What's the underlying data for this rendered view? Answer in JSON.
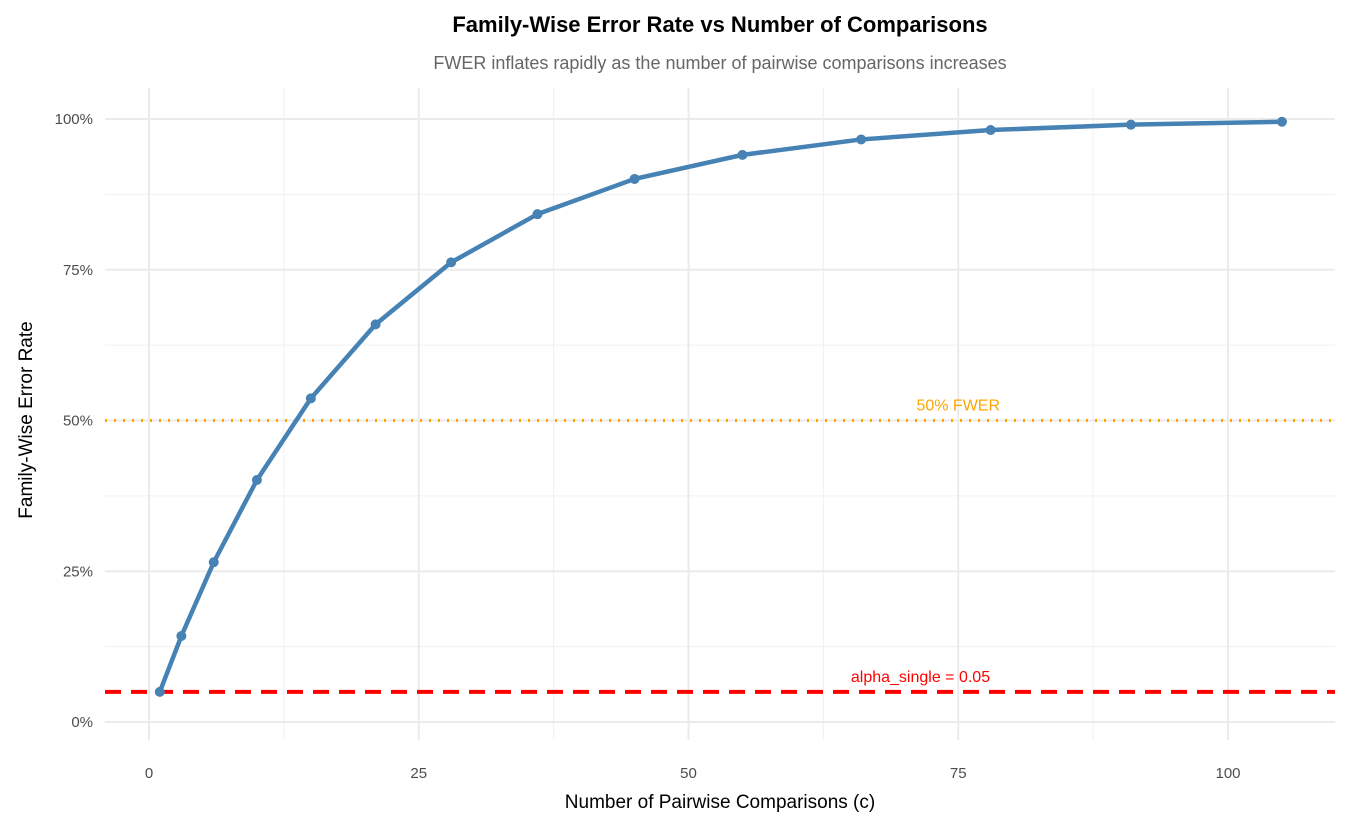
{
  "chart_data": {
    "type": "line",
    "title": "Family-Wise Error Rate vs Number of Comparisons",
    "subtitle": "FWER inflates rapidly as the number of pairwise comparisons increases",
    "xlabel": "Number of Pairwise Comparisons (c)",
    "ylabel": "Family-Wise Error Rate",
    "xlim": [
      -4,
      110
    ],
    "ylim": [
      -0.03,
      1.05
    ],
    "x_ticks": [
      0,
      25,
      50,
      75,
      100
    ],
    "x_tick_labels": [
      "0",
      "25",
      "50",
      "75",
      "100"
    ],
    "y_ticks": [
      0,
      0.25,
      0.5,
      0.75,
      1
    ],
    "y_tick_labels": [
      "0%",
      "25%",
      "50%",
      "75%",
      "100%"
    ],
    "grid": true,
    "series": [
      {
        "name": "FWER",
        "color": "#4682B4",
        "x": [
          1,
          3,
          6,
          10,
          15,
          21,
          28,
          36,
          45,
          55,
          66,
          78,
          91,
          105
        ],
        "y": [
          0.05,
          0.1426,
          0.2649,
          0.4013,
          0.5367,
          0.6594,
          0.7622,
          0.8422,
          0.9006,
          0.9405,
          0.9661,
          0.9817,
          0.9906,
          0.9954
        ]
      }
    ],
    "reference_lines": [
      {
        "y": 0.5,
        "style": "dotted",
        "color": "#FFA500",
        "label": "50% FWER",
        "label_x": 75
      },
      {
        "y": 0.05,
        "style": "dashed",
        "color": "#FF0000",
        "label": "alpha_single = 0.05",
        "label_x": 71.5
      }
    ]
  }
}
